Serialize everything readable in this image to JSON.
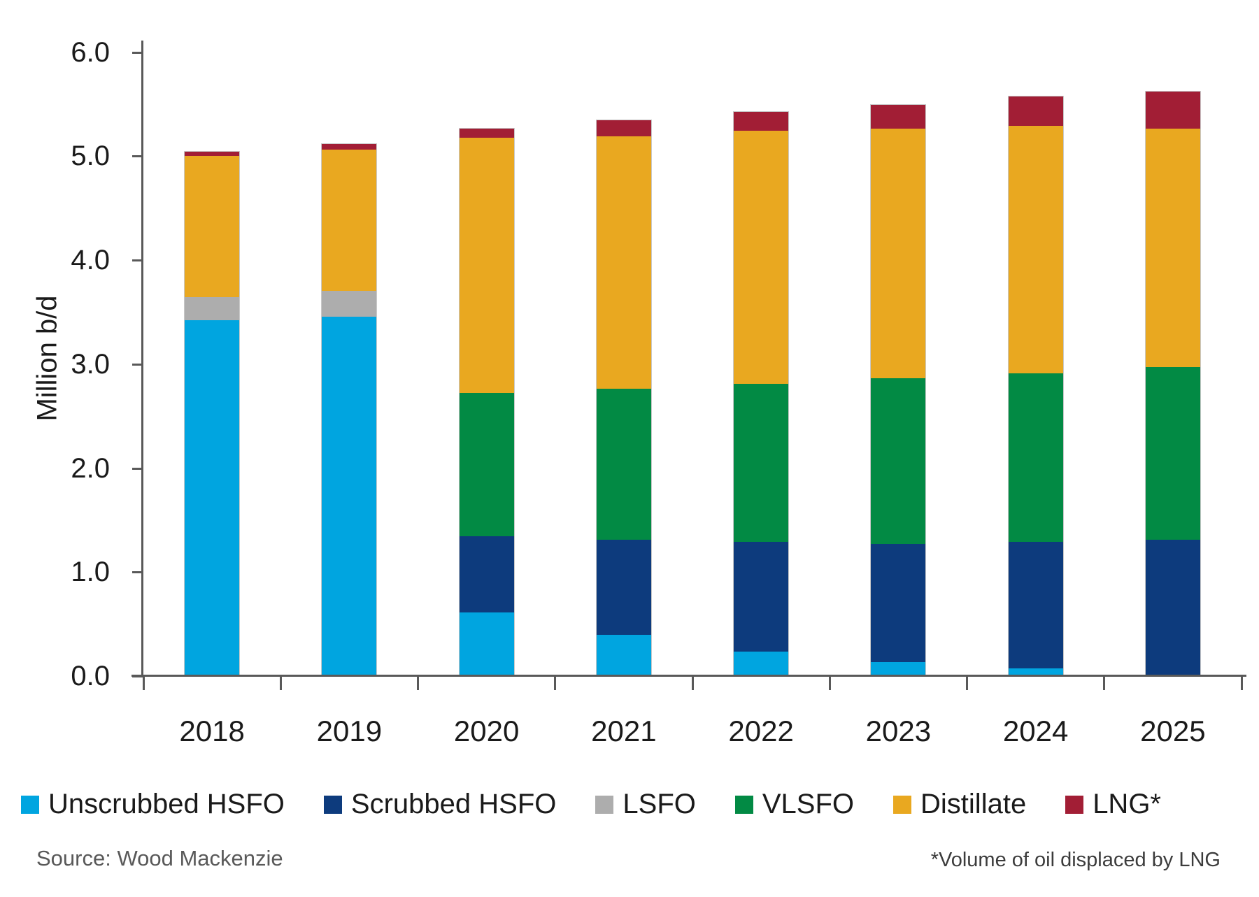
{
  "chart_data": {
    "type": "bar",
    "stacked": true,
    "title": "",
    "ylabel": "Million b/d",
    "xlabel": "",
    "ylim": [
      0,
      6
    ],
    "grid": false,
    "legend_position": "bottom",
    "ytick_labels_top_to_bottom": [
      "6.0",
      "5.0",
      "4.0",
      "3.0",
      "2.0",
      "1.0",
      "0.0"
    ],
    "categories": [
      "2018",
      "2019",
      "2020",
      "2021",
      "2022",
      "2023",
      "2024",
      "2025"
    ],
    "series": [
      {
        "name": "Unscrubbed HSFO",
        "color": "#00A5E0",
        "values": [
          3.41,
          3.44,
          0.6,
          0.38,
          0.22,
          0.12,
          0.06,
          0.0
        ]
      },
      {
        "name": "Scrubbed HSFO",
        "color": "#0D3B7D",
        "values": [
          0.0,
          0.0,
          0.73,
          0.92,
          1.06,
          1.14,
          1.22,
          1.3
        ]
      },
      {
        "name": "LSFO",
        "color": "#ADADAD",
        "values": [
          0.22,
          0.25,
          0.0,
          0.0,
          0.0,
          0.0,
          0.0,
          0.0
        ]
      },
      {
        "name": "VLSFO",
        "color": "#028A44",
        "values": [
          0.0,
          0.0,
          1.38,
          1.45,
          1.52,
          1.59,
          1.62,
          1.66
        ]
      },
      {
        "name": "Distillate",
        "color": "#E9A820",
        "values": [
          1.36,
          1.36,
          2.45,
          2.43,
          2.43,
          2.4,
          2.38,
          2.29
        ]
      },
      {
        "name": "LNG*",
        "color": "#A21E35",
        "values": [
          0.04,
          0.05,
          0.09,
          0.15,
          0.18,
          0.23,
          0.28,
          0.36
        ]
      }
    ],
    "totals": [
      5.03,
      5.1,
      5.25,
      5.33,
      5.41,
      5.48,
      5.56,
      5.61
    ],
    "axis_color": "#595959"
  },
  "footer": {
    "source": "Source: Wood Mackenzie",
    "footnote": "*Volume of oil displaced by LNG"
  }
}
